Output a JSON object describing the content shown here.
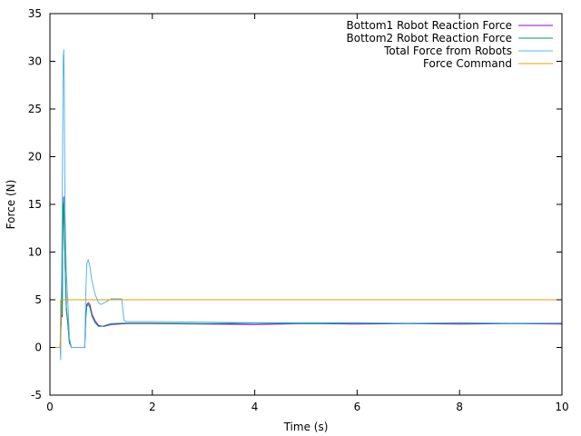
{
  "chart_data": {
    "type": "line",
    "title": "",
    "xlabel": "Time (s)",
    "ylabel": "Force (N)",
    "xlim": [
      0,
      10
    ],
    "ylim": [
      -5,
      35
    ],
    "xticks": [
      0,
      2,
      4,
      6,
      8,
      10
    ],
    "yticks": [
      -5,
      0,
      5,
      10,
      15,
      20,
      25,
      30,
      35
    ],
    "grid": false,
    "legend_position": "top-right",
    "series": [
      {
        "name": "Bottom1 Robot Reaction Force",
        "color": "#9400d3",
        "x": [
          0,
          0.2,
          0.21,
          0.22,
          0.23,
          0.24,
          0.25,
          0.26,
          0.27,
          0.28,
          0.3,
          0.32,
          0.35,
          0.38,
          0.42,
          0.5,
          0.6,
          0.68,
          0.7,
          0.72,
          0.75,
          0.78,
          0.82,
          0.88,
          0.95,
          1.05,
          1.2,
          1.5,
          2,
          3,
          4,
          5,
          6,
          7,
          8,
          9,
          10
        ],
        "y": [
          0,
          0,
          1.5,
          2.5,
          5.5,
          3.2,
          11.5,
          14.8,
          15.8,
          13,
          8,
          4,
          2.5,
          0.5,
          0,
          0,
          0,
          0,
          3,
          4.5,
          4.7,
          4.5,
          3.5,
          2.8,
          2.3,
          2.2,
          2.4,
          2.5,
          2.5,
          2.45,
          2.4,
          2.5,
          2.45,
          2.5,
          2.45,
          2.5,
          2.45
        ]
      },
      {
        "name": "Bottom2 Robot Reaction Force",
        "color": "#009e73",
        "x": [
          0,
          0.2,
          0.21,
          0.22,
          0.23,
          0.24,
          0.25,
          0.26,
          0.27,
          0.28,
          0.3,
          0.32,
          0.35,
          0.38,
          0.42,
          0.5,
          0.6,
          0.68,
          0.7,
          0.72,
          0.75,
          0.78,
          0.82,
          0.88,
          0.95,
          1.05,
          1.2,
          1.5,
          2,
          3,
          4,
          5,
          6,
          7,
          8,
          9,
          10
        ],
        "y": [
          0,
          0,
          1.8,
          2.8,
          5.8,
          3.5,
          11.3,
          15,
          15.5,
          13.5,
          8.2,
          4.2,
          2.6,
          0.6,
          0,
          0,
          0,
          0,
          3.2,
          4.3,
          4.5,
          4.2,
          3.3,
          2.6,
          2.2,
          2.25,
          2.5,
          2.55,
          2.55,
          2.5,
          2.55,
          2.5,
          2.55,
          2.5,
          2.55,
          2.5,
          2.55
        ]
      },
      {
        "name": "Total Force from Robots",
        "color": "#56b4e9",
        "x": [
          0,
          0.2,
          0.21,
          0.22,
          0.23,
          0.24,
          0.25,
          0.26,
          0.27,
          0.28,
          0.29,
          0.3,
          0.32,
          0.35,
          0.38,
          0.42,
          0.5,
          0.6,
          0.68,
          0.7,
          0.72,
          0.75,
          0.78,
          0.82,
          0.88,
          0.95,
          1.0,
          1.1,
          1.2,
          1.3,
          1.4,
          1.45,
          1.5,
          2,
          3,
          4,
          5,
          6,
          7,
          8,
          9,
          10
        ],
        "y": [
          0,
          0,
          -1.3,
          5.2,
          8,
          15,
          23,
          30.5,
          31.2,
          28,
          18,
          13,
          8,
          4.8,
          1,
          0,
          0,
          0,
          0,
          5.5,
          8.8,
          9.2,
          8.5,
          7,
          5.6,
          4.7,
          4.5,
          4.8,
          5.1,
          5.1,
          5.1,
          2.8,
          2.7,
          2.7,
          2.65,
          2.6,
          2.6,
          2.6,
          2.55,
          2.6,
          2.55,
          2.55
        ]
      },
      {
        "name": "Force Command",
        "color": "#e69f00",
        "x": [
          0,
          0.2,
          0.21,
          10
        ],
        "y": [
          0,
          0,
          5,
          5
        ]
      }
    ]
  }
}
